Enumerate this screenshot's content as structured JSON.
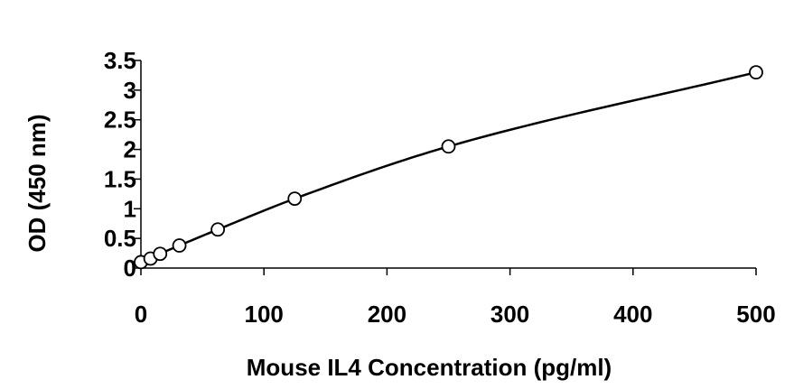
{
  "chart_data": {
    "type": "scatter",
    "title": "",
    "xlabel": "Mouse IL4 Concentration (pg/ml)",
    "ylabel": "OD (450 nm)",
    "xlim": [
      0,
      500
    ],
    "ylim": [
      0,
      3.5
    ],
    "x_ticks": [
      0,
      100,
      200,
      300,
      400,
      500
    ],
    "x_tick_labels": [
      "0",
      "100",
      "200",
      "300",
      "400",
      "500"
    ],
    "y_ticks": [
      0,
      0.5,
      1,
      1.5,
      2,
      2.5,
      3,
      3.5
    ],
    "y_tick_labels": [
      "0",
      "0.5",
      "1",
      "1.5",
      "2",
      "2.5",
      "3",
      "3.5"
    ],
    "grid": false,
    "legend": "none",
    "series": [
      {
        "x": [
          0,
          7.8,
          15.6,
          31.25,
          62.5,
          125,
          250,
          500
        ],
        "y": [
          0.1,
          0.16,
          0.24,
          0.38,
          0.65,
          1.17,
          2.05,
          3.3
        ],
        "marker": "open-circle",
        "fit": "smooth-curve"
      }
    ],
    "colors": {
      "line": "#000000",
      "marker": "#000000"
    }
  }
}
